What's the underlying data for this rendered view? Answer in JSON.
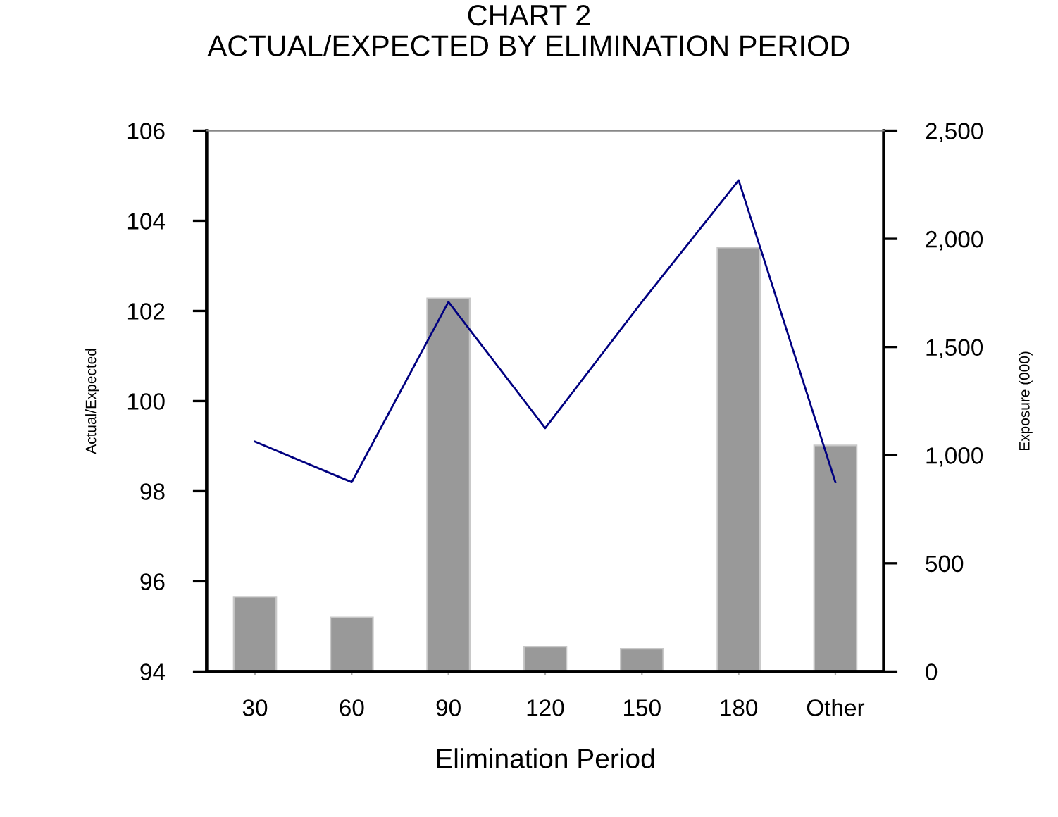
{
  "chart_data": {
    "type": "bar",
    "title": "CHART 2\nACTUAL/EXPECTED BY ELIMINATION PERIOD",
    "xlabel": "Elimination Period",
    "ylabel": "Actual/Expected",
    "y2label": "Exposure (000)",
    "categories": [
      "30",
      "60",
      "90",
      "120",
      "150",
      "180",
      "Other"
    ],
    "series": [
      {
        "axis": "y2",
        "color": "#999999",
        "values": [
          345,
          250,
          1725,
          115,
          105,
          1960,
          1045
        ]
      },
      {
        "type": "line",
        "color": "#000080",
        "values": [
          99.1,
          98.2,
          102.2,
          99.4,
          102.2,
          104.9,
          98.2
        ]
      }
    ],
    "ylim": [
      94,
      106
    ],
    "yticks": [
      94,
      96,
      98,
      100,
      102,
      104,
      106
    ],
    "y2lim": [
      0,
      2500
    ],
    "y2ticks": [
      {
        "value": 0,
        "label": "0"
      },
      {
        "value": 500,
        "label": "500"
      },
      {
        "value": 1000,
        "label": "1,000"
      },
      {
        "value": 1500,
        "label": "1,500"
      },
      {
        "value": 2000,
        "label": "2,000"
      },
      {
        "value": 2500,
        "label": "2,500"
      }
    ],
    "grid": false,
    "legend": false,
    "marker": "none",
    "line_style": "solid"
  }
}
